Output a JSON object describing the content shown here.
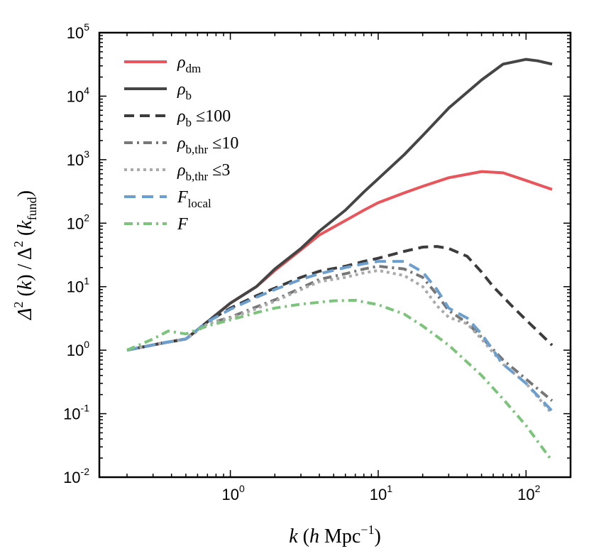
{
  "chart_data": {
    "type": "line",
    "xscale": "log",
    "yscale": "log",
    "xlim": [
      0.13,
      200
    ],
    "ylim": [
      0.01,
      100000
    ],
    "xlabel": "k  (h Mpc^-1)",
    "ylabel": "Δ²(k)/Δ²(k_fund)",
    "x_ticks": [
      {
        "base": "10",
        "exp": "0",
        "value": 1
      },
      {
        "base": "10",
        "exp": "1",
        "value": 10
      },
      {
        "base": "10",
        "exp": "2",
        "value": 100
      }
    ],
    "y_ticks": [
      {
        "base": "10",
        "exp": "-2",
        "value": 0.01
      },
      {
        "base": "10",
        "exp": "-1",
        "value": 0.1
      },
      {
        "base": "10",
        "exp": "0",
        "value": 1
      },
      {
        "base": "10",
        "exp": "1",
        "value": 10
      },
      {
        "base": "10",
        "exp": "2",
        "value": 100
      },
      {
        "base": "10",
        "exp": "3",
        "value": 1000
      },
      {
        "base": "10",
        "exp": "4",
        "value": 10000
      },
      {
        "base": "10",
        "exp": "5",
        "value": 100000
      }
    ],
    "legend_position": "top-left",
    "series": [
      {
        "name": "ρ_dm",
        "color": "#e8555a",
        "style": "solid",
        "points": [
          [
            0.2,
            1
          ],
          [
            0.35,
            1.3
          ],
          [
            0.5,
            1.5
          ],
          [
            0.7,
            2.8
          ],
          [
            1,
            5.5
          ],
          [
            1.5,
            10
          ],
          [
            2,
            18
          ],
          [
            3,
            38
          ],
          [
            4,
            65
          ],
          [
            6,
            110
          ],
          [
            8,
            160
          ],
          [
            10,
            210
          ],
          [
            15,
            300
          ],
          [
            20,
            380
          ],
          [
            30,
            520
          ],
          [
            50,
            650
          ],
          [
            70,
            620
          ],
          [
            100,
            470
          ],
          [
            150,
            340
          ]
        ]
      },
      {
        "name": "ρ_b",
        "color": "#454545",
        "style": "solid",
        "points": [
          [
            0.2,
            1
          ],
          [
            0.35,
            1.3
          ],
          [
            0.5,
            1.5
          ],
          [
            0.7,
            2.8
          ],
          [
            1,
            5.5
          ],
          [
            1.5,
            10
          ],
          [
            2,
            19
          ],
          [
            3,
            40
          ],
          [
            4,
            75
          ],
          [
            6,
            160
          ],
          [
            8,
            310
          ],
          [
            10,
            500
          ],
          [
            15,
            1200
          ],
          [
            20,
            2400
          ],
          [
            30,
            6500
          ],
          [
            50,
            18000
          ],
          [
            70,
            32000
          ],
          [
            100,
            38000
          ],
          [
            120,
            36000
          ],
          [
            150,
            32000
          ]
        ]
      },
      {
        "name": "ρ_b ≤100",
        "color": "#3c3c3c",
        "style": "dash",
        "points": [
          [
            0.2,
            1
          ],
          [
            0.35,
            1.3
          ],
          [
            0.5,
            1.5
          ],
          [
            0.7,
            2.8
          ],
          [
            1,
            4.6
          ],
          [
            1.5,
            7.2
          ],
          [
            2,
            9.5
          ],
          [
            3,
            14
          ],
          [
            4,
            17.5
          ],
          [
            6,
            21
          ],
          [
            8,
            25
          ],
          [
            10,
            28
          ],
          [
            15,
            36
          ],
          [
            20,
            42
          ],
          [
            25,
            43
          ],
          [
            30,
            40
          ],
          [
            40,
            30
          ],
          [
            50,
            17
          ],
          [
            60,
            10
          ],
          [
            80,
            5
          ],
          [
            100,
            3
          ],
          [
            150,
            1.2
          ]
        ]
      },
      {
        "name": "ρ_b,thr ≤10",
        "color": "#777777",
        "style": "dashdot",
        "points": [
          [
            0.2,
            1
          ],
          [
            0.35,
            1.3
          ],
          [
            0.5,
            1.5
          ],
          [
            0.7,
            2.6
          ],
          [
            1,
            3.3
          ],
          [
            1.5,
            4.8
          ],
          [
            2,
            6.2
          ],
          [
            3,
            9.5
          ],
          [
            4,
            13
          ],
          [
            6,
            16
          ],
          [
            8,
            19
          ],
          [
            10,
            21
          ],
          [
            15,
            19
          ],
          [
            20,
            14
          ],
          [
            25,
            7.5
          ],
          [
            30,
            4.2
          ],
          [
            40,
            2.7
          ],
          [
            50,
            1.6
          ],
          [
            70,
            0.7
          ],
          [
            100,
            0.35
          ],
          [
            150,
            0.16
          ]
        ]
      },
      {
        "name": "ρ_b,thr ≤3",
        "color": "#aaaaaa",
        "style": "dot",
        "points": [
          [
            0.2,
            1
          ],
          [
            0.35,
            1.3
          ],
          [
            0.5,
            1.5
          ],
          [
            0.7,
            2.6
          ],
          [
            1,
            3.2
          ],
          [
            1.5,
            4.5
          ],
          [
            2,
            5.9
          ],
          [
            3,
            9
          ],
          [
            4,
            12
          ],
          [
            6,
            14
          ],
          [
            8,
            16.5
          ],
          [
            10,
            18
          ],
          [
            15,
            15
          ],
          [
            20,
            10
          ],
          [
            25,
            5
          ],
          [
            30,
            3.3
          ],
          [
            40,
            2.6
          ],
          [
            50,
            1.5
          ],
          [
            70,
            0.6
          ],
          [
            100,
            0.3
          ],
          [
            150,
            0.1
          ]
        ]
      },
      {
        "name": "F_local",
        "color": "#6a9fcf",
        "style": "longdash",
        "points": [
          [
            0.2,
            1
          ],
          [
            0.35,
            1.3
          ],
          [
            0.5,
            1.5
          ],
          [
            0.7,
            2.8
          ],
          [
            1,
            4.4
          ],
          [
            1.5,
            6.8
          ],
          [
            2,
            9
          ],
          [
            3,
            13
          ],
          [
            4,
            16
          ],
          [
            6,
            20
          ],
          [
            8,
            23
          ],
          [
            10,
            25
          ],
          [
            15,
            25
          ],
          [
            20,
            17
          ],
          [
            25,
            9
          ],
          [
            30,
            4.6
          ],
          [
            40,
            3.2
          ],
          [
            50,
            1.8
          ],
          [
            70,
            0.6
          ],
          [
            100,
            0.3
          ],
          [
            150,
            0.11
          ]
        ]
      },
      {
        "name": "F",
        "color": "#7cc47c",
        "style": "dashdot",
        "points": [
          [
            0.2,
            1
          ],
          [
            0.3,
            1.5
          ],
          [
            0.38,
            2
          ],
          [
            0.5,
            1.8
          ],
          [
            0.7,
            2.4
          ],
          [
            1,
            3
          ],
          [
            1.5,
            3.9
          ],
          [
            2,
            4.6
          ],
          [
            3,
            5.3
          ],
          [
            5,
            6
          ],
          [
            7,
            6.1
          ],
          [
            10,
            5.2
          ],
          [
            15,
            3.7
          ],
          [
            20,
            2.4
          ],
          [
            30,
            1.2
          ],
          [
            50,
            0.4
          ],
          [
            70,
            0.17
          ],
          [
            100,
            0.065
          ],
          [
            150,
            0.018
          ]
        ]
      }
    ]
  }
}
